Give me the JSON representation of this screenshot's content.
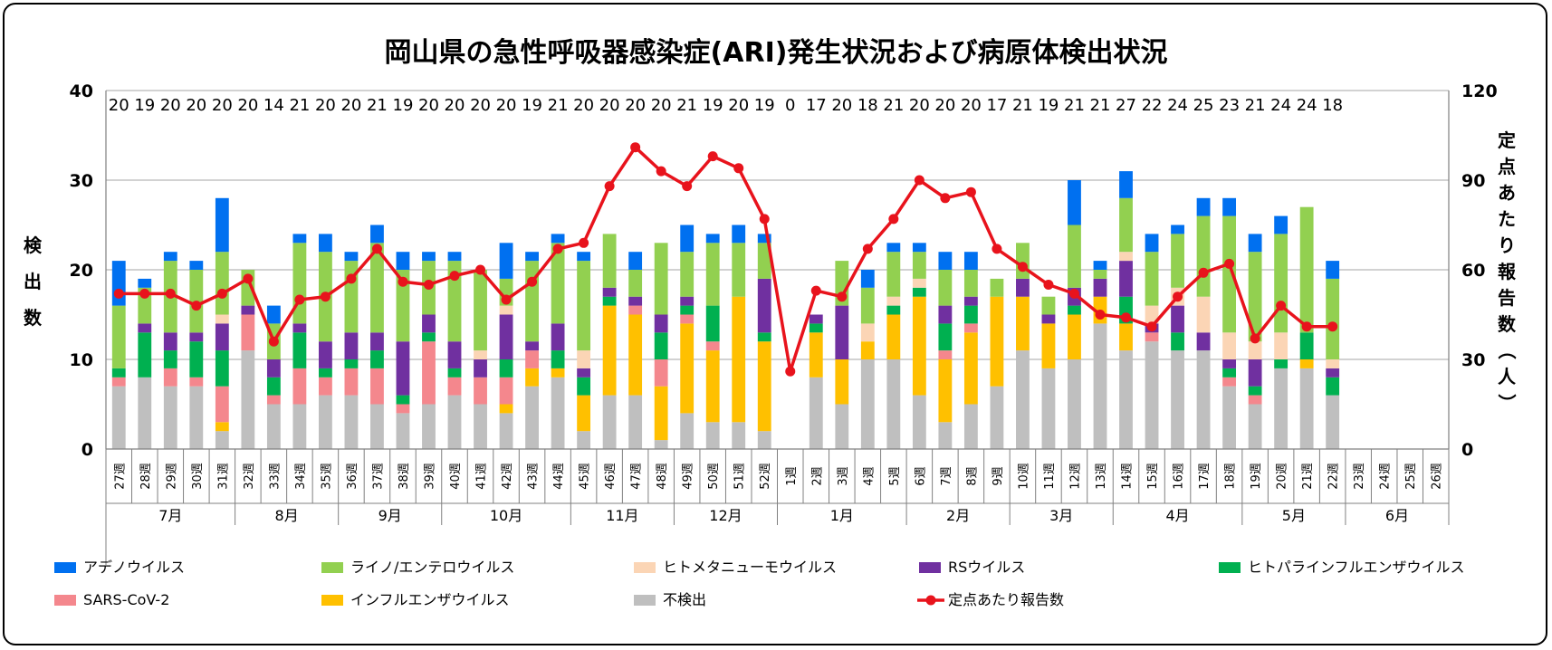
{
  "chart_data": {
    "type": "bar",
    "title": "岡山県の急性呼吸器感染症(ARI)発生状況および病原体検出状況",
    "ylabel": "検出数",
    "y2label": "定点あたり報告数（人）",
    "ylim": [
      0,
      40
    ],
    "y2lim": [
      0,
      120
    ],
    "yticks": [
      "0",
      "10",
      "20",
      "30",
      "40"
    ],
    "y2ticks": [
      "0",
      "30",
      "60",
      "90",
      "120"
    ],
    "grid": true,
    "legend_position": "bottom",
    "categories": [
      "27週",
      "28週",
      "29週",
      "30週",
      "31週",
      "32週",
      "33週",
      "34週",
      "35週",
      "36週",
      "37週",
      "38週",
      "39週",
      "40週",
      "41週",
      "42週",
      "43週",
      "44週",
      "45週",
      "46週",
      "47週",
      "48週",
      "49週",
      "50週",
      "51週",
      "52週",
      "1週",
      "2週",
      "3週",
      "4週",
      "5週",
      "6週",
      "7週",
      "8週",
      "9週",
      "10週",
      "11週",
      "12週",
      "13週",
      "14週",
      "15週",
      "16週",
      "17週",
      "18週",
      "19週",
      "20週",
      "21週",
      "22週",
      "23週",
      "24週",
      "25週",
      "26週"
    ],
    "months": [
      {
        "label": "7月",
        "span": 5
      },
      {
        "label": "8月",
        "span": 4
      },
      {
        "label": "9月",
        "span": 4
      },
      {
        "label": "10月",
        "span": 5
      },
      {
        "label": "11月",
        "span": 4
      },
      {
        "label": "12月",
        "span": 4
      },
      {
        "label": "1月",
        "span": 5
      },
      {
        "label": "2月",
        "span": 4
      },
      {
        "label": "3月",
        "span": 4
      },
      {
        "label": "4月",
        "span": 5
      },
      {
        "label": "5月",
        "span": 4
      },
      {
        "label": "6月",
        "span": 4
      }
    ],
    "top_counts": [
      "20",
      "19",
      "20",
      "20",
      "20",
      "20",
      "14",
      "21",
      "20",
      "20",
      "21",
      "19",
      "20",
      "20",
      "20",
      "20",
      "19",
      "21",
      "20",
      "20",
      "20",
      "20",
      "21",
      "19",
      "20",
      "19",
      "0",
      "17",
      "20",
      "18",
      "21",
      "20",
      "20",
      "20",
      "17",
      "21",
      "19",
      "21",
      "21",
      "27",
      "22",
      "24",
      "25",
      "23",
      "21",
      "24",
      "24",
      "18",
      "",
      "",
      "",
      ""
    ],
    "series": [
      {
        "name": "不検出",
        "color": "#BFBFBF",
        "values": [
          7,
          8,
          7,
          7,
          2,
          11,
          5,
          5,
          6,
          6,
          5,
          4,
          5,
          6,
          5,
          4,
          7,
          8,
          2,
          6,
          6,
          1,
          4,
          3,
          3,
          2,
          0,
          8,
          5,
          10,
          10,
          6,
          3,
          5,
          7,
          11,
          9,
          10,
          14,
          11,
          12,
          11,
          11,
          7,
          5,
          9,
          9,
          6,
          0,
          0,
          0,
          0
        ]
      },
      {
        "name": "インフルエンザウイルス",
        "color": "#FFC000",
        "values": [
          0,
          0,
          0,
          0,
          1,
          0,
          0,
          0,
          0,
          0,
          0,
          0,
          0,
          0,
          0,
          1,
          2,
          1,
          4,
          10,
          9,
          6,
          10,
          8,
          14,
          10,
          0,
          5,
          5,
          2,
          5,
          11,
          7,
          8,
          10,
          6,
          5,
          5,
          3,
          3,
          0,
          0,
          0,
          0,
          0,
          0,
          1,
          0,
          0,
          0,
          0,
          0
        ]
      },
      {
        "name": "SARS-CoV-2",
        "color": "#F4878D",
        "values": [
          1,
          0,
          2,
          1,
          4,
          4,
          1,
          4,
          2,
          3,
          4,
          1,
          7,
          2,
          3,
          3,
          2,
          0,
          0,
          0,
          1,
          3,
          1,
          1,
          0,
          0,
          0,
          0,
          0,
          0,
          0,
          0,
          1,
          1,
          0,
          0,
          0,
          0,
          0,
          0,
          1,
          0,
          0,
          1,
          1,
          0,
          0,
          0,
          0,
          0,
          0,
          0
        ]
      },
      {
        "name": "ヒトパラインフルエンザウイルス",
        "color": "#00B050",
        "values": [
          1,
          5,
          2,
          4,
          4,
          0,
          2,
          4,
          1,
          1,
          2,
          1,
          1,
          1,
          0,
          2,
          0,
          2,
          2,
          1,
          0,
          3,
          1,
          4,
          0,
          1,
          0,
          1,
          0,
          0,
          1,
          1,
          3,
          2,
          0,
          0,
          0,
          1,
          0,
          3,
          0,
          2,
          0,
          1,
          1,
          1,
          3,
          2,
          0,
          0,
          0,
          0
        ]
      },
      {
        "name": "RSウイルス",
        "color": "#7030A0",
        "values": [
          0,
          1,
          2,
          1,
          3,
          1,
          2,
          1,
          3,
          3,
          2,
          6,
          2,
          3,
          2,
          5,
          1,
          3,
          1,
          1,
          1,
          2,
          1,
          0,
          0,
          6,
          0,
          1,
          6,
          0,
          0,
          0,
          2,
          1,
          0,
          2,
          1,
          2,
          2,
          4,
          1,
          3,
          2,
          1,
          3,
          0,
          0,
          1,
          0,
          0,
          0,
          0
        ]
      },
      {
        "name": "ヒトメタニューモウイルス",
        "color": "#FBD5B5",
        "values": [
          0,
          0,
          0,
          0,
          1,
          0,
          0,
          0,
          0,
          0,
          0,
          0,
          0,
          0,
          1,
          1,
          0,
          0,
          2,
          0,
          0,
          0,
          0,
          0,
          0,
          0,
          0,
          0,
          0,
          2,
          1,
          1,
          0,
          0,
          0,
          0,
          0,
          0,
          0,
          1,
          2,
          2,
          4,
          3,
          2,
          3,
          0,
          1,
          0,
          0,
          0,
          0
        ]
      },
      {
        "name": "ライノ/エンテロウイルス",
        "color": "#92D050",
        "values": [
          7,
          4,
          8,
          7,
          7,
          4,
          4,
          9,
          10,
          8,
          10,
          8,
          6,
          9,
          9,
          3,
          9,
          9,
          10,
          6,
          3,
          8,
          5,
          7,
          6,
          4,
          0,
          0,
          5,
          4,
          5,
          3,
          4,
          3,
          2,
          4,
          2,
          7,
          1,
          6,
          6,
          6,
          9,
          13,
          10,
          11,
          14,
          9,
          0,
          0,
          0,
          0
        ]
      },
      {
        "name": "アデノウイルス",
        "color": "#0070F0",
        "values": [
          5,
          1,
          1,
          1,
          6,
          0,
          2,
          1,
          2,
          1,
          2,
          2,
          1,
          1,
          0,
          4,
          1,
          1,
          1,
          0,
          2,
          0,
          3,
          1,
          2,
          1,
          0,
          0,
          0,
          2,
          1,
          1,
          2,
          2,
          0,
          0,
          0,
          5,
          1,
          3,
          2,
          1,
          2,
          2,
          2,
          2,
          0,
          2,
          0,
          0,
          0,
          0
        ]
      }
    ],
    "line_series": {
      "name": "定点あたり報告数",
      "color": "#E8131C",
      "values": [
        52,
        52,
        52,
        48,
        52,
        57,
        36,
        50,
        51,
        57,
        67,
        56,
        55,
        58,
        60,
        50,
        56,
        67,
        69,
        88,
        101,
        93,
        88,
        98,
        94,
        77,
        26,
        53,
        51,
        67,
        77,
        90,
        84,
        86,
        67,
        61,
        55,
        52,
        45,
        44,
        41,
        51,
        59,
        62,
        37,
        48,
        41,
        41,
        null,
        null,
        null,
        null
      ]
    }
  },
  "legend": [
    {
      "name": "アデノウイルス",
      "color": "#0070F0",
      "kind": "box"
    },
    {
      "name": "ライノ/エンテロウイルス",
      "color": "#92D050",
      "kind": "box"
    },
    {
      "name": "ヒトメタニューモウイルス",
      "color": "#FBD5B5",
      "kind": "box"
    },
    {
      "name": "RSウイルス",
      "color": "#7030A0",
      "kind": "box"
    },
    {
      "name": "ヒトパラインフルエンザウイルス",
      "color": "#00B050",
      "kind": "box"
    },
    {
      "name": "SARS-CoV-2",
      "color": "#F4878D",
      "kind": "box"
    },
    {
      "name": "インフルエンザウイルス",
      "color": "#FFC000",
      "kind": "box"
    },
    {
      "name": "不検出",
      "color": "#BFBFBF",
      "kind": "box"
    },
    {
      "name": "定点あたり報告数",
      "color": "#E8131C",
      "kind": "line"
    }
  ]
}
